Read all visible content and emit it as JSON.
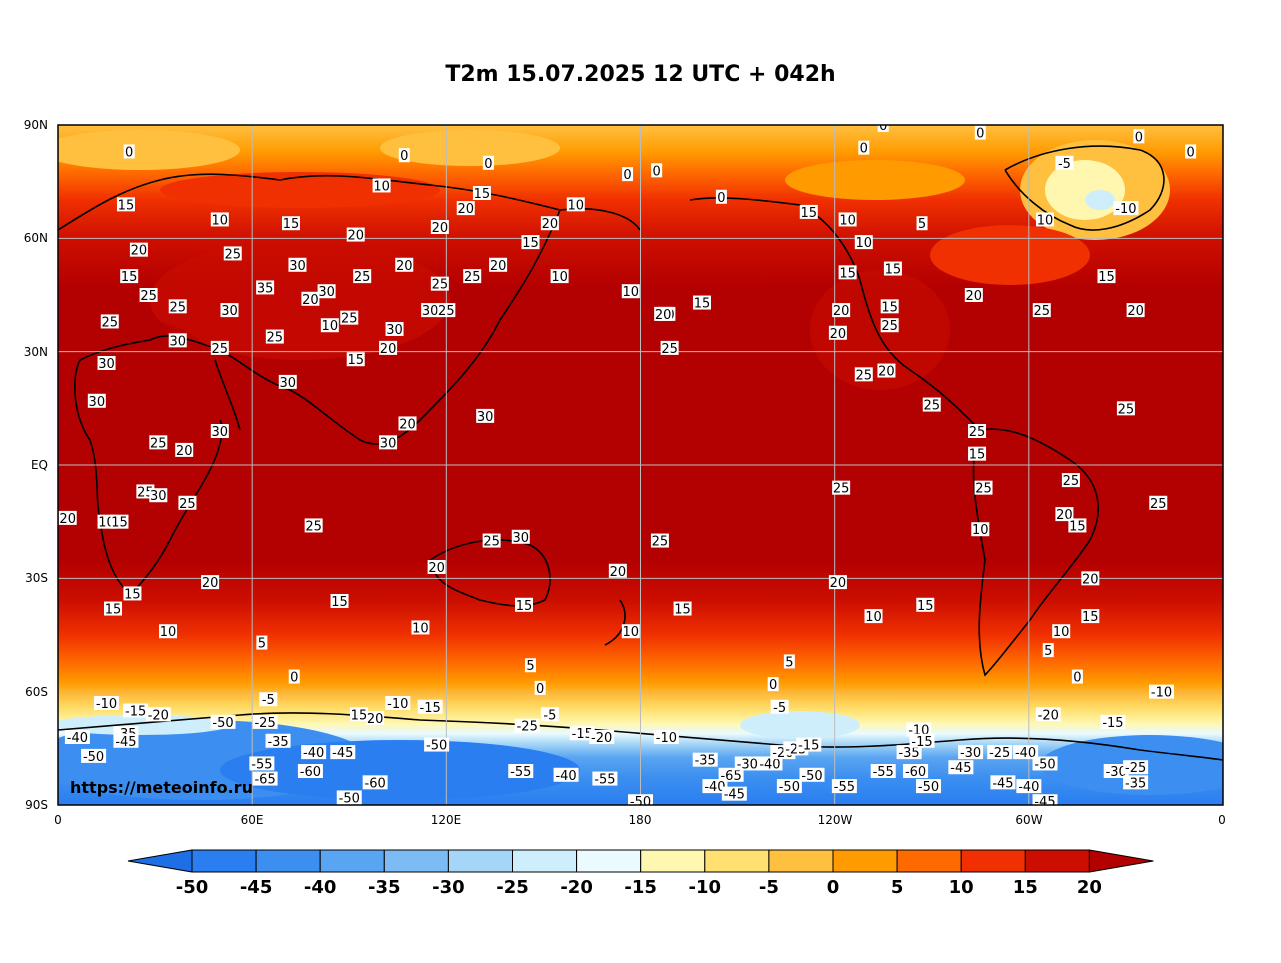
{
  "title": "T2m 15.07.2025 12 UTC + 042h",
  "watermark": "https://meteoinfo.ru",
  "lat_labels": [
    "90N",
    "60N",
    "30N",
    "EQ",
    "30S",
    "60S",
    "90S"
  ],
  "lon_labels": [
    "0",
    "60E",
    "120E",
    "180",
    "120W",
    "60W",
    "0"
  ],
  "colorbar": {
    "ticks": [
      "-50",
      "-45",
      "-40",
      "-35",
      "-30",
      "-25",
      "-20",
      "-15",
      "-10",
      "-5",
      "0",
      "5",
      "10",
      "15",
      "20"
    ],
    "colors": [
      "#1e6ee6",
      "#2a7ef0",
      "#3c8ff0",
      "#5aa5f2",
      "#7dbbf4",
      "#a5d6f7",
      "#cdeefa",
      "#eafaff",
      "#fff7b0",
      "#ffe070",
      "#ffc040",
      "#ff9b00",
      "#ff6a00",
      "#f03000",
      "#cc0e00",
      "#b30000"
    ]
  },
  "contour_labels": [
    {
      "t": "0",
      "lon": 22,
      "lat": 83
    },
    {
      "t": "0",
      "lon": 107,
      "lat": 82
    },
    {
      "t": "0",
      "lon": 133,
      "lat": 80
    },
    {
      "t": "0",
      "lon": 185,
      "lat": 78
    },
    {
      "t": "0",
      "lon": 255,
      "lat": 90
    },
    {
      "t": "0",
      "lon": 249,
      "lat": 84
    },
    {
      "t": "0",
      "lon": 285,
      "lat": 88
    },
    {
      "t": "0",
      "lon": 334,
      "lat": 87
    },
    {
      "t": "0",
      "lon": 350,
      "lat": 83
    },
    {
      "t": "0",
      "lon": 205,
      "lat": 71
    },
    {
      "t": "-5",
      "lon": 311,
      "lat": 80
    },
    {
      "t": "-10",
      "lon": 330,
      "lat": 68
    },
    {
      "t": "10",
      "lon": 305,
      "lat": 65
    },
    {
      "t": "5",
      "lon": 267,
      "lat": 64
    },
    {
      "t": "10",
      "lon": 100,
      "lat": 74
    },
    {
      "t": "15",
      "lon": 131,
      "lat": 72
    },
    {
      "t": "15",
      "lon": 21,
      "lat": 69
    },
    {
      "t": "10",
      "lon": 50,
      "lat": 65
    },
    {
      "t": "15",
      "lon": 72,
      "lat": 64
    },
    {
      "t": "20",
      "lon": 126,
      "lat": 68
    },
    {
      "t": "10",
      "lon": 160,
      "lat": 69
    },
    {
      "t": "20",
      "lon": 152,
      "lat": 64
    },
    {
      "t": "20",
      "lon": 118,
      "lat": 63
    },
    {
      "t": "20",
      "lon": 92,
      "lat": 61
    },
    {
      "t": "15",
      "lon": 146,
      "lat": 59
    },
    {
      "t": "20",
      "lon": 25,
      "lat": 57
    },
    {
      "t": "25",
      "lon": 54,
      "lat": 56
    },
    {
      "t": "15",
      "lon": 22,
      "lat": 50
    },
    {
      "t": "30",
      "lon": 74,
      "lat": 53
    },
    {
      "t": "25",
      "lon": 94,
      "lat": 50
    },
    {
      "t": "20",
      "lon": 107,
      "lat": 53
    },
    {
      "t": "25",
      "lon": 128,
      "lat": 50
    },
    {
      "t": "20",
      "lon": 136,
      "lat": 53
    },
    {
      "t": "10",
      "lon": 155,
      "lat": 50
    },
    {
      "t": "25",
      "lon": 28,
      "lat": 45
    },
    {
      "t": "35",
      "lon": 64,
      "lat": 47
    },
    {
      "t": "30",
      "lon": 83,
      "lat": 46
    },
    {
      "t": "20",
      "lon": 78,
      "lat": 44
    },
    {
      "t": "25",
      "lon": 37,
      "lat": 42
    },
    {
      "t": "30",
      "lon": 53,
      "lat": 41
    },
    {
      "t": "25",
      "lon": 90,
      "lat": 39
    },
    {
      "t": "10",
      "lon": 84,
      "lat": 37
    },
    {
      "t": "30",
      "lon": 104,
      "lat": 36
    },
    {
      "t": "30",
      "lon": 115,
      "lat": 41
    },
    {
      "t": "25",
      "lon": 120,
      "lat": 41
    },
    {
      "t": "25",
      "lon": 118,
      "lat": 48
    },
    {
      "t": "25",
      "lon": 16,
      "lat": 38
    },
    {
      "t": "30",
      "lon": 37,
      "lat": 33
    },
    {
      "t": "25",
      "lon": 67,
      "lat": 34
    },
    {
      "t": "20",
      "lon": 102,
      "lat": 31
    },
    {
      "t": "25",
      "lon": 50,
      "lat": 31
    },
    {
      "t": "15",
      "lon": 92,
      "lat": 28
    },
    {
      "t": "30",
      "lon": 15,
      "lat": 27
    },
    {
      "t": "30",
      "lon": 71,
      "lat": 22
    },
    {
      "t": "30",
      "lon": 12,
      "lat": 17
    },
    {
      "t": "30",
      "lon": 132,
      "lat": 13
    },
    {
      "t": "20",
      "lon": 108,
      "lat": 11
    },
    {
      "t": "30",
      "lon": 102,
      "lat": 6
    },
    {
      "t": "30",
      "lon": 50,
      "lat": 9
    },
    {
      "t": "25",
      "lon": 31,
      "lat": 6
    },
    {
      "t": "20",
      "lon": 39,
      "lat": 4
    },
    {
      "t": "25",
      "lon": 27,
      "lat": -7
    },
    {
      "t": "30",
      "lon": 31,
      "lat": -8
    },
    {
      "t": "25",
      "lon": 40,
      "lat": -10
    },
    {
      "t": "20",
      "lon": 3,
      "lat": -14
    },
    {
      "t": "10",
      "lon": 15,
      "lat": -15
    },
    {
      "t": "15",
      "lon": 19,
      "lat": -15
    },
    {
      "t": "25",
      "lon": 79,
      "lat": -16
    },
    {
      "t": "25",
      "lon": 134,
      "lat": -20
    },
    {
      "t": "30",
      "lon": 143,
      "lat": -19
    },
    {
      "t": "25",
      "lon": 186,
      "lat": -20
    },
    {
      "t": "20",
      "lon": 117,
      "lat": -27
    },
    {
      "t": "20",
      "lon": 173,
      "lat": -28
    },
    {
      "t": "20",
      "lon": 47,
      "lat": -31
    },
    {
      "t": "15",
      "lon": 23,
      "lat": -34
    },
    {
      "t": "15",
      "lon": 17,
      "lat": -38
    },
    {
      "t": "15",
      "lon": 87,
      "lat": -36
    },
    {
      "t": "15",
      "lon": 144,
      "lat": -37
    },
    {
      "t": "15",
      "lon": 193,
      "lat": -38
    },
    {
      "t": "10",
      "lon": 34,
      "lat": -44
    },
    {
      "t": "10",
      "lon": 112,
      "lat": -43
    },
    {
      "t": "10",
      "lon": 177,
      "lat": -44
    },
    {
      "t": "5",
      "lon": 63,
      "lat": -47
    },
    {
      "t": "5",
      "lon": 146,
      "lat": -53
    },
    {
      "t": "0",
      "lon": 73,
      "lat": -56
    },
    {
      "t": "0",
      "lon": 149,
      "lat": -59
    },
    {
      "t": "5",
      "lon": 226,
      "lat": -52
    },
    {
      "t": "0",
      "lon": 221,
      "lat": -58
    },
    {
      "t": "-5",
      "lon": 223,
      "lat": -64
    },
    {
      "t": "-10",
      "lon": 15,
      "lat": -63
    },
    {
      "t": "-15",
      "lon": 24,
      "lat": -65
    },
    {
      "t": "-20",
      "lon": 31,
      "lat": -66
    },
    {
      "t": "-10",
      "lon": 105,
      "lat": -63
    },
    {
      "t": "-15",
      "lon": 115,
      "lat": -64
    },
    {
      "t": "-5",
      "lon": 65,
      "lat": -62
    },
    {
      "t": "15",
      "lon": 93,
      "lat": -66
    },
    {
      "t": "20",
      "lon": 98,
      "lat": -67
    },
    {
      "t": "-50",
      "lon": 51,
      "lat": -68
    },
    {
      "t": "-25",
      "lon": 64,
      "lat": -68
    },
    {
      "t": "-40",
      "lon": 6,
      "lat": -72
    },
    {
      "t": "-35",
      "lon": 21,
      "lat": -71
    },
    {
      "t": "-45",
      "lon": 21,
      "lat": -73
    },
    {
      "t": "-50",
      "lon": 11,
      "lat": -77
    },
    {
      "t": "-35",
      "lon": 68,
      "lat": -73
    },
    {
      "t": "-40",
      "lon": 79,
      "lat": -76
    },
    {
      "t": "-45",
      "lon": 88,
      "lat": -76
    },
    {
      "t": "-55",
      "lon": 63,
      "lat": -79
    },
    {
      "t": "-65",
      "lon": 64,
      "lat": -83
    },
    {
      "t": "-60",
      "lon": 78,
      "lat": -81
    },
    {
      "t": "-60",
      "lon": 98,
      "lat": -84
    },
    {
      "t": "-50",
      "lon": 117,
      "lat": -74
    },
    {
      "t": "-25",
      "lon": 145,
      "lat": -69
    },
    {
      "t": "-5",
      "lon": 152,
      "lat": -66
    },
    {
      "t": "-15",
      "lon": 162,
      "lat": -71
    },
    {
      "t": "-20",
      "lon": 168,
      "lat": -72
    },
    {
      "t": "-10",
      "lon": 188,
      "lat": -72
    },
    {
      "t": "-35",
      "lon": 200,
      "lat": -78
    },
    {
      "t": "-55",
      "lon": 143,
      "lat": -81
    },
    {
      "t": "-40",
      "lon": 157,
      "lat": -82
    },
    {
      "t": "-55",
      "lon": 169,
      "lat": -83
    },
    {
      "t": "-65",
      "lon": 208,
      "lat": -82
    },
    {
      "t": "-40",
      "lon": 220,
      "lat": -79
    },
    {
      "t": "-30",
      "lon": 213,
      "lat": -79
    },
    {
      "t": "-20",
      "lon": 224,
      "lat": -76
    },
    {
      "t": "-25",
      "lon": 228,
      "lat": -75
    },
    {
      "t": "-15",
      "lon": 232,
      "lat": -74
    },
    {
      "t": "-50",
      "lon": 233,
      "lat": -82
    },
    {
      "t": "-55",
      "lon": 243,
      "lat": -85
    },
    {
      "t": "-55",
      "lon": 255,
      "lat": -81
    },
    {
      "t": "-60",
      "lon": 265,
      "lat": -81
    },
    {
      "t": "-10",
      "lon": 266,
      "lat": -70
    },
    {
      "t": "-35",
      "lon": 263,
      "lat": -76
    },
    {
      "t": "-15",
      "lon": 267,
      "lat": -73
    },
    {
      "t": "-45",
      "lon": 279,
      "lat": -80
    },
    {
      "t": "-30",
      "lon": 282,
      "lat": -76
    },
    {
      "t": "-25",
      "lon": 291,
      "lat": -76
    },
    {
      "t": "-40",
      "lon": 299,
      "lat": -76
    },
    {
      "t": "-50",
      "lon": 305,
      "lat": -79
    },
    {
      "t": "-20",
      "lon": 306,
      "lat": -66
    },
    {
      "t": "-15",
      "lon": 326,
      "lat": -68
    },
    {
      "t": "-10",
      "lon": 341,
      "lat": -60
    },
    {
      "t": "-30",
      "lon": 327,
      "lat": -81
    },
    {
      "t": "-25",
      "lon": 333,
      "lat": -80
    },
    {
      "t": "-35",
      "lon": 333,
      "lat": -84
    },
    {
      "t": "-45",
      "lon": 292,
      "lat": -84
    },
    {
      "t": "-40",
      "lon": 300,
      "lat": -85
    },
    {
      "t": "-45",
      "lon": 305,
      "lat": -89
    },
    {
      "t": "-50",
      "lon": 180,
      "lat": -89
    },
    {
      "t": "-50",
      "lon": 90,
      "lat": -88
    },
    {
      "t": "-40",
      "lon": 203,
      "lat": -85
    },
    {
      "t": "-45",
      "lon": 209,
      "lat": -87
    },
    {
      "t": "-50",
      "lon": 226,
      "lat": -85
    },
    {
      "t": "-50",
      "lon": 269,
      "lat": -85
    },
    {
      "t": "10",
      "lon": 244,
      "lat": 65
    },
    {
      "t": "15",
      "lon": 232,
      "lat": 67
    },
    {
      "t": "10",
      "lon": 249,
      "lat": 59
    },
    {
      "t": "15",
      "lon": 244,
      "lat": 51
    },
    {
      "t": "15",
      "lon": 258,
      "lat": 52
    },
    {
      "t": "20",
      "lon": 242,
      "lat": 41
    },
    {
      "t": "20",
      "lon": 241,
      "lat": 35
    },
    {
      "t": "15",
      "lon": 257,
      "lat": 42
    },
    {
      "t": "25",
      "lon": 257,
      "lat": 37
    },
    {
      "t": "20",
      "lon": 256,
      "lat": 25
    },
    {
      "t": "25",
      "lon": 249,
      "lat": 24
    },
    {
      "t": "25",
      "lon": 270,
      "lat": 16
    },
    {
      "t": "20",
      "lon": 283,
      "lat": 45
    },
    {
      "t": "25",
      "lon": 304,
      "lat": 41
    },
    {
      "t": "20",
      "lon": 333,
      "lat": 41
    },
    {
      "t": "15",
      "lon": 324,
      "lat": 50
    },
    {
      "t": "25",
      "lon": 330,
      "lat": 15
    },
    {
      "t": "25",
      "lon": 284,
      "lat": 9
    },
    {
      "t": "15",
      "lon": 284,
      "lat": 3
    },
    {
      "t": "25",
      "lon": 286,
      "lat": -6
    },
    {
      "t": "25",
      "lon": 313,
      "lat": -4
    },
    {
      "t": "20",
      "lon": 311,
      "lat": -13
    },
    {
      "t": "15",
      "lon": 315,
      "lat": -16
    },
    {
      "t": "10",
      "lon": 285,
      "lat": -17
    },
    {
      "t": "20",
      "lon": 319,
      "lat": -30
    },
    {
      "t": "15",
      "lon": 319,
      "lat": -40
    },
    {
      "t": "10",
      "lon": 310,
      "lat": -44
    },
    {
      "t": "5",
      "lon": 306,
      "lat": -49
    },
    {
      "t": "0",
      "lon": 315,
      "lat": -56
    },
    {
      "t": "25",
      "lon": 340,
      "lat": -10
    },
    {
      "t": "20",
      "lon": 241,
      "lat": -31
    },
    {
      "t": "10",
      "lon": 252,
      "lat": -40
    },
    {
      "t": "15",
      "lon": 268,
      "lat": -37
    },
    {
      "t": "25",
      "lon": 242,
      "lat": -6
    },
    {
      "t": "10",
      "lon": 188,
      "lat": 40
    },
    {
      "t": "15",
      "lon": 199,
      "lat": 43
    },
    {
      "t": "20",
      "lon": 187,
      "lat": 40
    },
    {
      "t": "25",
      "lon": 189,
      "lat": 31
    },
    {
      "t": "10",
      "lon": 177,
      "lat": 46
    },
    {
      "t": "0",
      "lon": 176,
      "lat": 77
    }
  ]
}
